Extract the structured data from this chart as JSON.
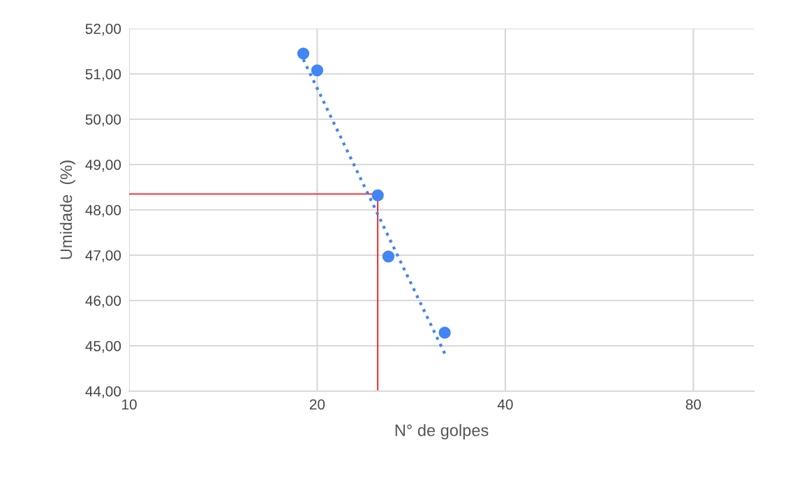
{
  "chart_data": {
    "type": "scatter",
    "xlabel": "N° de golpes",
    "ylabel": "Umidade  (%)",
    "log": "x",
    "xlim": [
      10,
      100
    ],
    "xticks": [
      10,
      20,
      40,
      80
    ],
    "ylim": [
      44,
      52
    ],
    "yticks": [
      {
        "value": 44,
        "label": "44,00"
      },
      {
        "value": 45,
        "label": "45,00"
      },
      {
        "value": 46,
        "label": "46,00"
      },
      {
        "value": 47,
        "label": "47,00"
      },
      {
        "value": 48,
        "label": "48,00"
      },
      {
        "value": 49,
        "label": "49,00"
      },
      {
        "value": 50,
        "label": "50,00"
      },
      {
        "value": 51,
        "label": "51,00"
      },
      {
        "value": 52,
        "label": "52,00"
      }
    ],
    "grid": true,
    "marker": "circle",
    "series": [
      {
        "color": "#4285f4",
        "x": [
          19.0,
          20.0,
          25.0,
          26.0,
          32.0
        ],
        "values": [
          51.45,
          51.08,
          48.32,
          46.97,
          45.29
        ]
      },
      {
        "type": "line",
        "color": "#4285f4",
        "line_style": "dotted",
        "marker": "none",
        "x": [
          19.0,
          32.0
        ],
        "values": [
          51.32,
          44.83
        ]
      }
    ],
    "ref_lines": [
      {
        "axis": "y",
        "value": 48.35,
        "color": "#ff0000"
      },
      {
        "axis": "x",
        "value": 25,
        "color": "#ff0000"
      }
    ]
  }
}
